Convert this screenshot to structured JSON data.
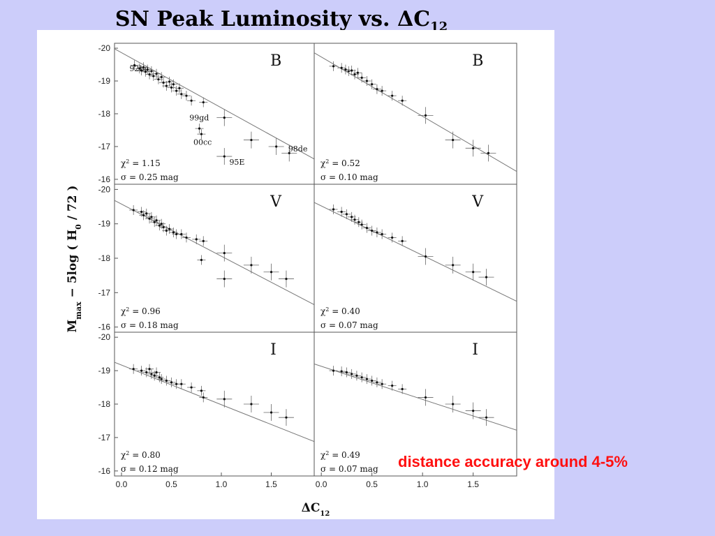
{
  "slide": {
    "title_main": "SN Peak Luminosity vs. ΔC",
    "title_sub": "12",
    "caption": "distance accuracy around 4-5%"
  },
  "colors": {
    "background": "#cccdfa",
    "panel": "#ffffff",
    "caption": "#ff1010",
    "ink": "#111111"
  },
  "chart_data": {
    "type": "scatter",
    "xlabel": "ΔC",
    "xlabel_sub": "12",
    "ylabel": "M",
    "ylabel_sub": "max",
    "ylabel_rest": " − 5log ( H",
    "ylabel_sub0": "0",
    "ylabel_tail": " / 72 )",
    "xlim": [
      -0.07,
      1.93
    ],
    "ylim": [
      -20.15,
      -15.85
    ],
    "y_inverted": true,
    "xticks": [
      "0.0",
      "0.5",
      "1.0",
      "1.5"
    ],
    "xtick_values": [
      0.0,
      0.5,
      1.0,
      1.5
    ],
    "yticks": [
      "-20",
      "-19",
      "-18",
      "-17",
      "-16"
    ],
    "ytick_values": [
      -20,
      -19,
      -18,
      -17,
      -16
    ],
    "grid": false,
    "panels": [
      {
        "band": "B",
        "side": "left",
        "chi2": "= 1.15",
        "sigma": "= 0.25 mag",
        "fit": {
          "x": [
            -0.07,
            1.93
          ],
          "y": [
            -19.98,
            -16.62
          ]
        },
        "labels": [
          {
            "text": "92bc",
            "x": 0.08,
            "y": -19.3
          },
          {
            "text": "99gd",
            "x": 0.68,
            "y": -17.8
          },
          {
            "text": "00cc",
            "x": 0.72,
            "y": -17.05
          },
          {
            "text": "95E",
            "x": 1.08,
            "y": -16.45
          },
          {
            "text": "98de",
            "x": 1.67,
            "y": -16.85
          }
        ],
        "points": [
          {
            "x": 0.13,
            "y": -19.48
          },
          {
            "x": 0.18,
            "y": -19.38
          },
          {
            "x": 0.2,
            "y": -19.32
          },
          {
            "x": 0.22,
            "y": -19.42
          },
          {
            "x": 0.24,
            "y": -19.28
          },
          {
            "x": 0.26,
            "y": -19.35
          },
          {
            "x": 0.28,
            "y": -19.2
          },
          {
            "x": 0.3,
            "y": -19.3
          },
          {
            "x": 0.32,
            "y": -19.15
          },
          {
            "x": 0.35,
            "y": -19.22
          },
          {
            "x": 0.37,
            "y": -19.05
          },
          {
            "x": 0.4,
            "y": -19.12
          },
          {
            "x": 0.42,
            "y": -18.95
          },
          {
            "x": 0.45,
            "y": -18.85
          },
          {
            "x": 0.48,
            "y": -18.98
          },
          {
            "x": 0.5,
            "y": -18.8
          },
          {
            "x": 0.52,
            "y": -18.9
          },
          {
            "x": 0.55,
            "y": -18.7
          },
          {
            "x": 0.58,
            "y": -18.78
          },
          {
            "x": 0.6,
            "y": -18.6
          },
          {
            "x": 0.65,
            "y": -18.55
          },
          {
            "x": 0.7,
            "y": -18.4
          },
          {
            "x": 0.78,
            "y": -17.55
          },
          {
            "x": 0.8,
            "y": -17.38
          },
          {
            "x": 0.82,
            "y": -18.35
          },
          {
            "x": 1.03,
            "y": -17.88
          },
          {
            "x": 1.03,
            "y": -16.7
          },
          {
            "x": 1.3,
            "y": -17.2
          },
          {
            "x": 1.55,
            "y": -17.0
          },
          {
            "x": 1.68,
            "y": -16.8
          }
        ]
      },
      {
        "band": "B",
        "side": "right",
        "chi2": "= 0.52",
        "sigma": "= 0.10 mag",
        "fit": {
          "x": [
            -0.07,
            1.93
          ],
          "y": [
            -19.86,
            -16.24
          ]
        },
        "labels": [],
        "points": [
          {
            "x": 0.12,
            "y": -19.45
          },
          {
            "x": 0.2,
            "y": -19.4
          },
          {
            "x": 0.24,
            "y": -19.35
          },
          {
            "x": 0.27,
            "y": -19.3
          },
          {
            "x": 0.3,
            "y": -19.32
          },
          {
            "x": 0.33,
            "y": -19.2
          },
          {
            "x": 0.36,
            "y": -19.25
          },
          {
            "x": 0.4,
            "y": -19.1
          },
          {
            "x": 0.45,
            "y": -19.0
          },
          {
            "x": 0.5,
            "y": -18.9
          },
          {
            "x": 0.55,
            "y": -18.75
          },
          {
            "x": 0.6,
            "y": -18.7
          },
          {
            "x": 0.7,
            "y": -18.55
          },
          {
            "x": 0.8,
            "y": -18.4
          },
          {
            "x": 1.03,
            "y": -17.95
          },
          {
            "x": 1.3,
            "y": -17.2
          },
          {
            "x": 1.5,
            "y": -16.95
          },
          {
            "x": 1.65,
            "y": -16.8
          }
        ]
      },
      {
        "band": "V",
        "side": "left",
        "chi2": "= 0.96",
        "sigma": "= 0.18 mag",
        "fit": {
          "x": [
            -0.07,
            1.93
          ],
          "y": [
            -19.68,
            -16.65
          ]
        },
        "labels": [],
        "points": [
          {
            "x": 0.12,
            "y": -19.4
          },
          {
            "x": 0.2,
            "y": -19.35
          },
          {
            "x": 0.22,
            "y": -19.25
          },
          {
            "x": 0.25,
            "y": -19.3
          },
          {
            "x": 0.28,
            "y": -19.15
          },
          {
            "x": 0.3,
            "y": -19.2
          },
          {
            "x": 0.33,
            "y": -19.05
          },
          {
            "x": 0.35,
            "y": -19.1
          },
          {
            "x": 0.38,
            "y": -18.95
          },
          {
            "x": 0.4,
            "y": -19.0
          },
          {
            "x": 0.42,
            "y": -18.9
          },
          {
            "x": 0.45,
            "y": -18.8
          },
          {
            "x": 0.48,
            "y": -18.85
          },
          {
            "x": 0.52,
            "y": -18.75
          },
          {
            "x": 0.55,
            "y": -18.7
          },
          {
            "x": 0.6,
            "y": -18.7
          },
          {
            "x": 0.65,
            "y": -18.6
          },
          {
            "x": 0.75,
            "y": -18.55
          },
          {
            "x": 0.8,
            "y": -17.95
          },
          {
            "x": 0.82,
            "y": -18.5
          },
          {
            "x": 1.03,
            "y": -18.15
          },
          {
            "x": 1.03,
            "y": -17.4
          },
          {
            "x": 1.3,
            "y": -17.8
          },
          {
            "x": 1.5,
            "y": -17.6
          },
          {
            "x": 1.65,
            "y": -17.4
          }
        ]
      },
      {
        "band": "V",
        "side": "right",
        "chi2": "= 0.40",
        "sigma": "= 0.07 mag",
        "fit": {
          "x": [
            -0.07,
            1.93
          ],
          "y": [
            -19.62,
            -16.75
          ]
        },
        "labels": [],
        "points": [
          {
            "x": 0.12,
            "y": -19.42
          },
          {
            "x": 0.2,
            "y": -19.35
          },
          {
            "x": 0.25,
            "y": -19.28
          },
          {
            "x": 0.3,
            "y": -19.2
          },
          {
            "x": 0.33,
            "y": -19.12
          },
          {
            "x": 0.37,
            "y": -19.05
          },
          {
            "x": 0.4,
            "y": -18.98
          },
          {
            "x": 0.45,
            "y": -18.88
          },
          {
            "x": 0.5,
            "y": -18.8
          },
          {
            "x": 0.55,
            "y": -18.75
          },
          {
            "x": 0.6,
            "y": -18.7
          },
          {
            "x": 0.7,
            "y": -18.6
          },
          {
            "x": 0.8,
            "y": -18.5
          },
          {
            "x": 1.03,
            "y": -18.05
          },
          {
            "x": 1.3,
            "y": -17.8
          },
          {
            "x": 1.5,
            "y": -17.6
          },
          {
            "x": 1.63,
            "y": -17.45
          }
        ]
      },
      {
        "band": "I",
        "side": "left",
        "chi2": "= 0.80",
        "sigma": "= 0.12 mag",
        "fit": {
          "x": [
            -0.07,
            1.93
          ],
          "y": [
            -19.25,
            -16.88
          ]
        },
        "labels": [],
        "points": [
          {
            "x": 0.12,
            "y": -19.05
          },
          {
            "x": 0.2,
            "y": -19.0
          },
          {
            "x": 0.25,
            "y": -18.95
          },
          {
            "x": 0.28,
            "y": -19.05
          },
          {
            "x": 0.3,
            "y": -18.9
          },
          {
            "x": 0.33,
            "y": -18.85
          },
          {
            "x": 0.35,
            "y": -18.95
          },
          {
            "x": 0.38,
            "y": -18.8
          },
          {
            "x": 0.4,
            "y": -18.75
          },
          {
            "x": 0.45,
            "y": -18.7
          },
          {
            "x": 0.5,
            "y": -18.65
          },
          {
            "x": 0.55,
            "y": -18.6
          },
          {
            "x": 0.6,
            "y": -18.6
          },
          {
            "x": 0.7,
            "y": -18.5
          },
          {
            "x": 0.8,
            "y": -18.4
          },
          {
            "x": 0.82,
            "y": -18.2
          },
          {
            "x": 1.03,
            "y": -18.15
          },
          {
            "x": 1.3,
            "y": -18.0
          },
          {
            "x": 1.5,
            "y": -17.75
          },
          {
            "x": 1.65,
            "y": -17.6
          }
        ]
      },
      {
        "band": "I",
        "side": "right",
        "chi2": "= 0.49",
        "sigma": "= 0.07 mag",
        "fit": {
          "x": [
            -0.07,
            1.93
          ],
          "y": [
            -19.2,
            -17.22
          ]
        },
        "labels": [],
        "points": [
          {
            "x": 0.12,
            "y": -19.0
          },
          {
            "x": 0.2,
            "y": -18.98
          },
          {
            "x": 0.25,
            "y": -18.95
          },
          {
            "x": 0.3,
            "y": -18.9
          },
          {
            "x": 0.35,
            "y": -18.85
          },
          {
            "x": 0.4,
            "y": -18.8
          },
          {
            "x": 0.45,
            "y": -18.75
          },
          {
            "x": 0.5,
            "y": -18.7
          },
          {
            "x": 0.55,
            "y": -18.65
          },
          {
            "x": 0.6,
            "y": -18.6
          },
          {
            "x": 0.7,
            "y": -18.55
          },
          {
            "x": 0.8,
            "y": -18.45
          },
          {
            "x": 1.03,
            "y": -18.2
          },
          {
            "x": 1.3,
            "y": -18.0
          },
          {
            "x": 1.5,
            "y": -17.8
          },
          {
            "x": 1.63,
            "y": -17.6
          }
        ]
      }
    ]
  }
}
